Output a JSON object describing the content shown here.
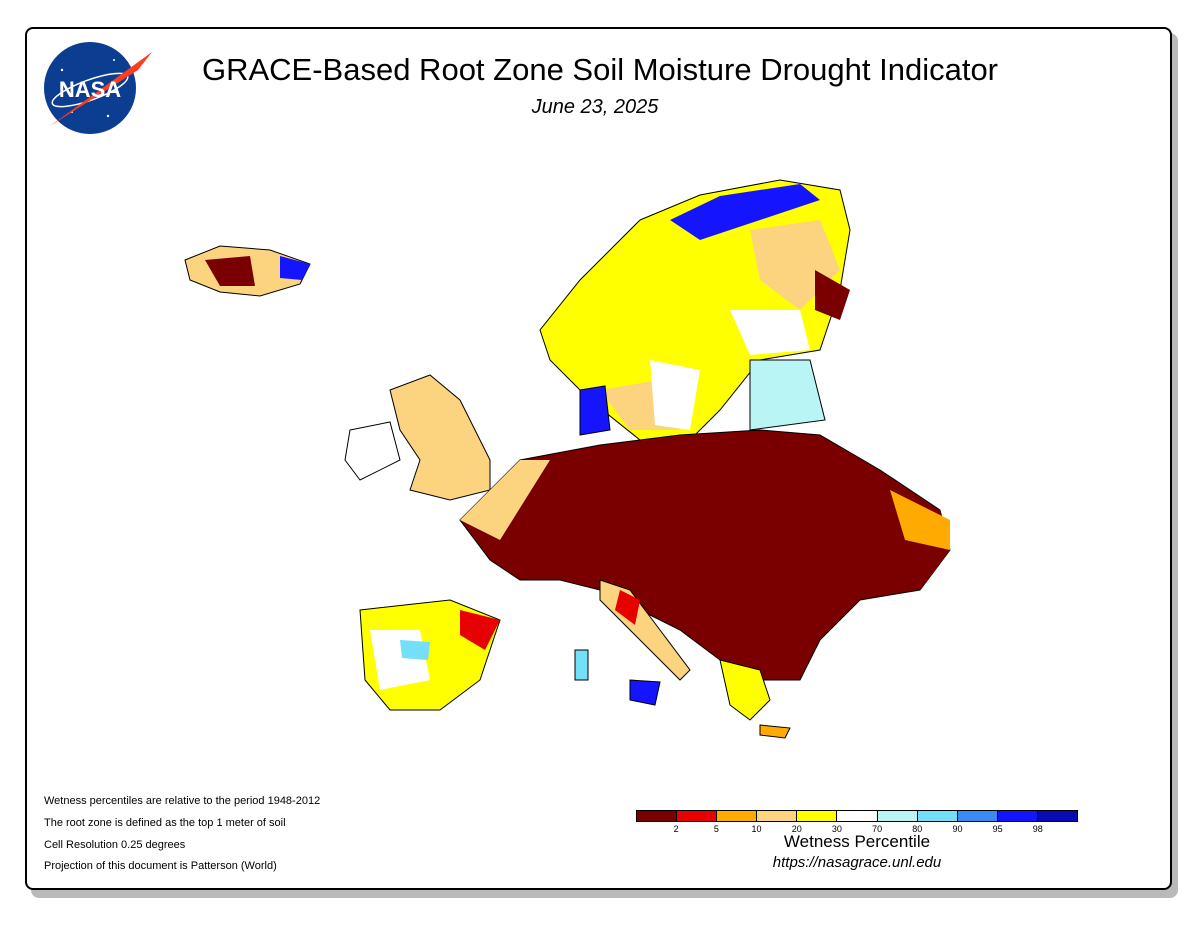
{
  "header": {
    "title": "GRACE-Based Root Zone Soil Moisture Drought Indicator",
    "date": "June 23, 2025",
    "logo_text": "NASA"
  },
  "notes": [
    "Wetness percentiles are relative to the period 1948-2012",
    "The root zone is defined as the top 1 meter of soil",
    "Cell Resolution 0.25 degrees",
    "Projection of this document is Patterson (World)"
  ],
  "legend": {
    "title": "Wetness Percentile",
    "url": "https://nasagrace.unl.edu",
    "colors": [
      "#7a0000",
      "#e60000",
      "#ffaa00",
      "#fcd37f",
      "#ffff00",
      "#ffffff",
      "#b9f5f5",
      "#73dff9",
      "#3a8cf5",
      "#1414ff",
      "#0a0ab4"
    ],
    "ticks": [
      "2",
      "5",
      "10",
      "20",
      "30",
      "70",
      "80",
      "90",
      "95",
      "98"
    ]
  },
  "map": {
    "region": "Europe",
    "dominant_category": "2"
  }
}
